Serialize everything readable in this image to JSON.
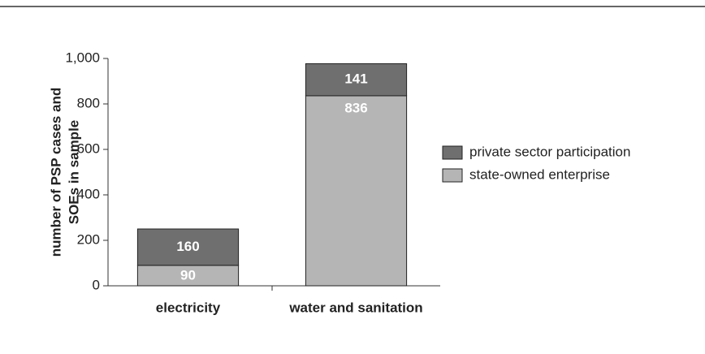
{
  "chart_data": {
    "type": "stacked_bar",
    "y_label": [
      "number of PSP cases and",
      "SOEs in sample"
    ],
    "categories": [
      "electricity",
      "water and sanitation"
    ],
    "series": [
      {
        "name": "private sector participation",
        "color": "#6f6f6f",
        "values": [
          160,
          141
        ]
      },
      {
        "name": "state-owned enterprise",
        "color": "#b5b5b5",
        "values": [
          90,
          836
        ]
      }
    ],
    "ylim": [
      0,
      1000
    ],
    "yticks": [
      0,
      200,
      400,
      600,
      800,
      {
        "value": 1000,
        "label": "1,000"
      }
    ]
  }
}
